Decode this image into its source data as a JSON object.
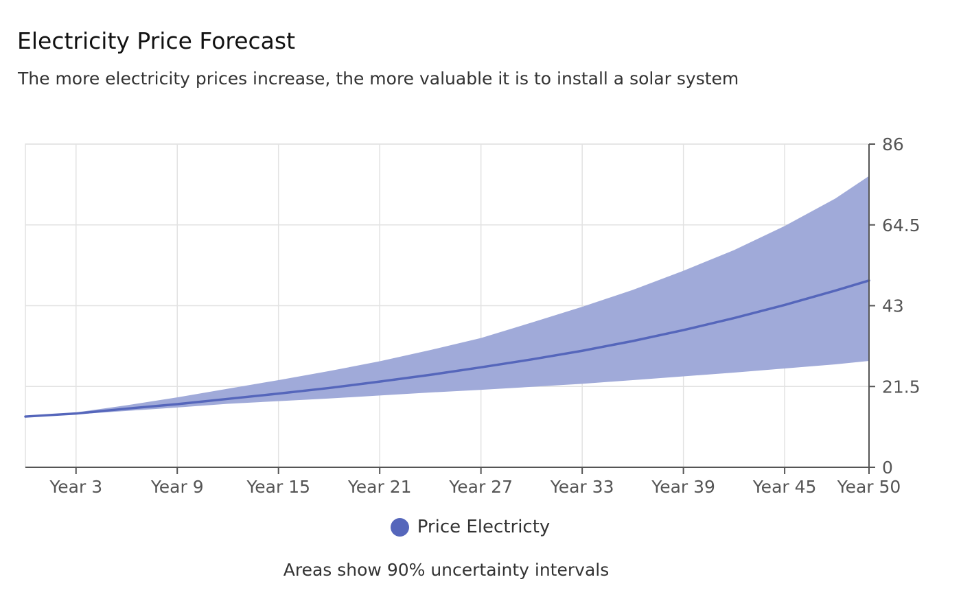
{
  "chart_data": {
    "type": "area",
    "title": "Electricity Price Forecast",
    "subtitle": "The more electricity prices increase, the more valuable it is to install a solar system",
    "x": [
      1,
      3,
      9,
      15,
      21,
      27,
      33,
      39,
      45,
      50
    ],
    "x_tick_values": [
      3,
      9,
      15,
      21,
      27,
      33,
      39,
      45,
      50
    ],
    "x_tick_labels": [
      "Year 3",
      "Year 9",
      "Year 15",
      "Year 21",
      "Year 27",
      "Year 33",
      "Year 39",
      "Year 45",
      "Year 50"
    ],
    "xlim": [
      0,
      50
    ],
    "y_tick_values": [
      0,
      21.5,
      43,
      64.5,
      86
    ],
    "y_tick_labels": [
      "0",
      "21.5",
      "43",
      "64.5",
      "86"
    ],
    "ylim": [
      0,
      86
    ],
    "y_axis_side": "right",
    "grid": true,
    "series": [
      {
        "name": "Price Electricty",
        "color": "#5566bb",
        "band_color": "#a0aad9",
        "x": [
          0,
          3,
          6,
          9,
          12,
          15,
          18,
          21,
          24,
          27,
          30,
          33,
          36,
          39,
          42,
          45,
          48,
          50
        ],
        "median": [
          13.5,
          14.3,
          15.6,
          16.8,
          18.2,
          19.6,
          21.1,
          22.8,
          24.6,
          26.6,
          28.7,
          31.0,
          33.6,
          36.5,
          39.7,
          43.2,
          47.0,
          49.7
        ],
        "lower": [
          13.5,
          14.1,
          15.0,
          15.9,
          16.9,
          17.6,
          18.3,
          19.1,
          19.9,
          20.6,
          21.4,
          22.2,
          23.2,
          24.2,
          25.2,
          26.3,
          27.4,
          28.3
        ],
        "upper": [
          13.5,
          14.6,
          16.5,
          18.6,
          20.9,
          23.2,
          25.6,
          28.2,
          31.2,
          34.4,
          38.5,
          42.7,
          47.2,
          52.3,
          57.8,
          64.2,
          71.5,
          77.5
        ]
      }
    ]
  },
  "legend": {
    "label": "Price Electricty",
    "color": "#5566bb",
    "placement": "bottom-center"
  },
  "footnote": "Areas show 90% uncertainty intervals"
}
